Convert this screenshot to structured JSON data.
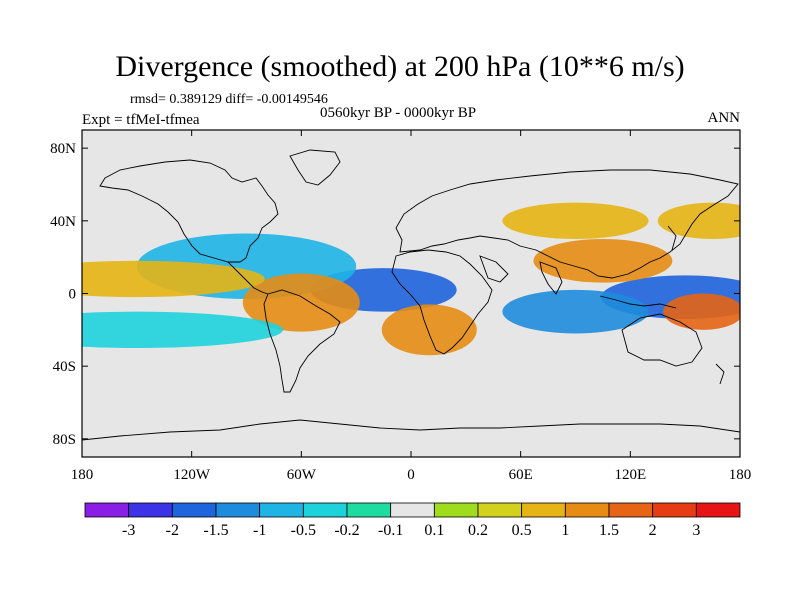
{
  "header": {
    "title": "Divergence (smoothed) at 200 hPa (10**6 m/s)",
    "stats": "rmsd= 0.389129 diff= -0.00149546",
    "period": "0560kyr BP - 0000kyr BP",
    "experiment": "Expt = tfMeI-tfmea",
    "season": "ANN"
  },
  "axes": {
    "x_ticks": [
      "180",
      "120W",
      "60W",
      "0",
      "60E",
      "120E",
      "180"
    ],
    "y_ticks": [
      "80N",
      "40N",
      "0",
      "40S",
      "80S"
    ],
    "lon_values": [
      -180,
      -120,
      -60,
      0,
      60,
      120,
      180
    ],
    "lat_values": [
      80,
      40,
      0,
      -40,
      -80
    ],
    "lon_range": [
      -180,
      180
    ],
    "lat_range": [
      -90,
      90
    ]
  },
  "colorbar": {
    "labels": [
      "-3",
      "-2",
      "-1.5",
      "-1",
      "-0.5",
      "-0.2",
      "-0.1",
      "0.1",
      "0.2",
      "0.5",
      "1",
      "1.5",
      "2",
      "3"
    ],
    "levels": [
      -3,
      -2,
      -1.5,
      -1,
      -0.5,
      -0.2,
      -0.1,
      0.1,
      0.2,
      0.5,
      1,
      1.5,
      2,
      3
    ],
    "colors": [
      "#8a1ee6",
      "#3c32e6",
      "#1e64dc",
      "#1e8cdc",
      "#1eb4e6",
      "#1ed2dc",
      "#1edca0",
      "#e6e6e6",
      "#a0dc1e",
      "#d2d21e",
      "#e6b414",
      "#e68c14",
      "#e66414",
      "#e63c14",
      "#e61414"
    ]
  },
  "colors": {
    "background": "#e6e6e6",
    "coast": "#000000"
  },
  "chart_data": {
    "type": "heatmap",
    "variable": "Divergence (smoothed) at 200 hPa",
    "units": "10**6 m/s",
    "x": [
      -180,
      -120,
      -60,
      0,
      60,
      120,
      180
    ],
    "y": [
      80,
      40,
      0,
      -40,
      -80
    ],
    "regions": [
      {
        "lon": 150,
        "lat": -2,
        "value": -2
      },
      {
        "lon": -15,
        "lat": 2,
        "value": -2
      },
      {
        "lon": 90,
        "lat": -10,
        "value": -1.5
      },
      {
        "lon": -90,
        "lat": 15,
        "value": -1
      },
      {
        "lon": 105,
        "lat": 18,
        "value": 1
      },
      {
        "lon": -60,
        "lat": -5,
        "value": 1
      },
      {
        "lon": 10,
        "lat": -20,
        "value": 1
      },
      {
        "lon": 160,
        "lat": -10,
        "value": 1.5
      },
      {
        "lon": -150,
        "lat": 8,
        "value": 0.5
      },
      {
        "lon": -150,
        "lat": -20,
        "value": -0.5
      },
      {
        "lon": 90,
        "lat": 40,
        "value": 0.5
      },
      {
        "lon": 165,
        "lat": 40,
        "value": 0.5
      }
    ],
    "legend_position": "bottom"
  }
}
